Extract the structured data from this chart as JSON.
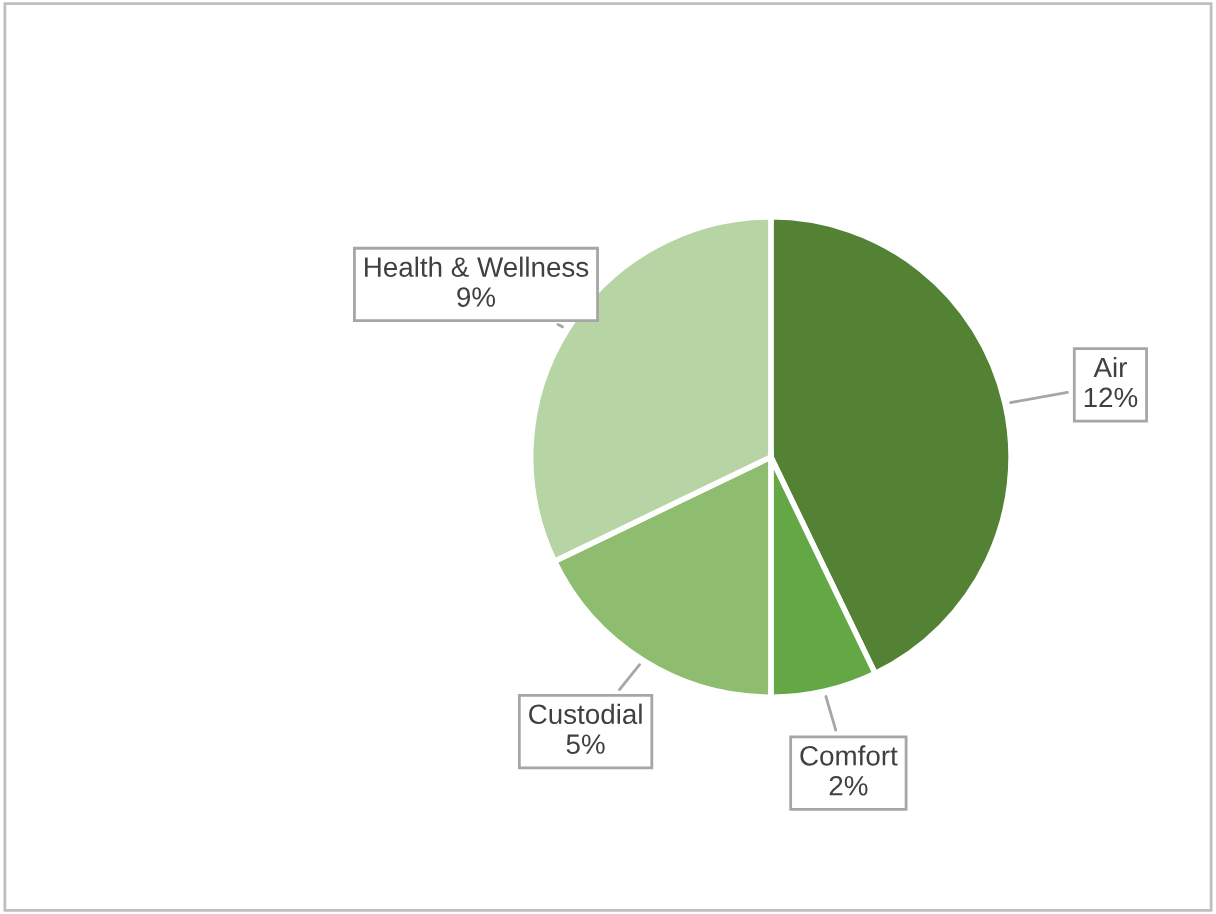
{
  "chart_data": {
    "type": "pie",
    "categories": [
      "Air",
      "Comfort",
      "Custodial",
      "Health & Wellness"
    ],
    "values": [
      12,
      2,
      5,
      9
    ],
    "value_labels": [
      "12%",
      "2%",
      "5%",
      "9%"
    ],
    "colors": [
      "#548235",
      "#63a844",
      "#8fbd70",
      "#b7d4a4"
    ],
    "legend": false
  }
}
